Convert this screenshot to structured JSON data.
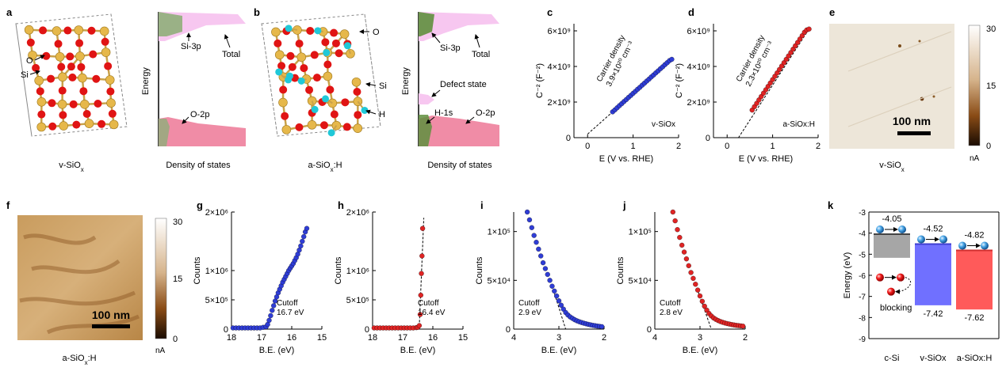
{
  "figure": {
    "panel_a": {
      "letter": "a",
      "caption": "v-SiOx",
      "atom_labels": [
        "O",
        "Si"
      ]
    },
    "panel_a_dos": {
      "ylabel": "Energy",
      "xlabel": "Density of states",
      "labels": [
        "Si-3p",
        "Total",
        "O-2p"
      ]
    },
    "panel_b": {
      "letter": "b",
      "caption": "a-SiOx:H",
      "atom_labels": [
        "O",
        "Si",
        "H"
      ]
    },
    "panel_b_dos": {
      "ylabel": "Energy",
      "xlabel": "Density of states",
      "labels": [
        "Si-3p",
        "Total",
        "Defect state",
        "H-1s",
        "O-2p"
      ]
    },
    "panel_e": {
      "letter": "e",
      "caption": "v-SiOx",
      "scale_bar": "100 nm",
      "colorbar_ticks": [
        "30",
        "15",
        "0"
      ],
      "colorbar_unit": "nA"
    },
    "panel_f": {
      "letter": "f",
      "caption": "a-SiOx:H",
      "scale_bar": "100 nm",
      "colorbar_ticks": [
        "30",
        "15",
        "0"
      ],
      "colorbar_unit": "nA"
    },
    "panel_k": {
      "letter": "k",
      "ylabel": "Energy (eV)",
      "blocking_label": "blocking"
    }
  },
  "chart_data": [
    {
      "panel": "c",
      "type": "scatter",
      "ylabel": "C⁻² (F⁻²)",
      "xlabel": "E (V vs. RHE)",
      "xlim": [
        -0.3,
        2.0
      ],
      "ylim": [
        0,
        6400000000.0
      ],
      "xticks": [
        "0",
        "1",
        "2"
      ],
      "yticks": [
        "0",
        "2×10⁹",
        "4×10⁹",
        "6×10⁹"
      ],
      "annotation_line1": "Carrier density",
      "annotation_line2": "3.9×10²⁰ cm⁻³",
      "legend": "v-SiOx",
      "color": "#2f3dd6",
      "x": [
        0.55,
        0.6,
        0.65,
        0.7,
        0.75,
        0.8,
        0.85,
        0.9,
        0.95,
        1.0,
        1.05,
        1.1,
        1.15,
        1.2,
        1.25,
        1.3,
        1.35,
        1.4,
        1.45,
        1.5,
        1.55,
        1.6,
        1.65,
        1.7,
        1.75,
        1.8,
        1.85
      ],
      "y": [
        1450000000.0,
        1560000000.0,
        1680000000.0,
        1800000000.0,
        1910000000.0,
        2030000000.0,
        2140000000.0,
        2260000000.0,
        2370000000.0,
        2490000000.0,
        2600000000.0,
        2720000000.0,
        2830000000.0,
        2950000000.0,
        3060000000.0,
        3180000000.0,
        3290000000.0,
        3410000000.0,
        3520000000.0,
        3640000000.0,
        3750000000.0,
        3870000000.0,
        3980000000.0,
        4100000000.0,
        4210000000.0,
        4330000000.0,
        4400000000.0
      ],
      "fit": [
        [
          0,
          200000000.0
        ],
        [
          1.85,
          4400000000.0
        ]
      ]
    },
    {
      "panel": "d",
      "type": "scatter",
      "ylabel": "C⁻² (F⁻²)",
      "xlabel": "E (V vs. RHE)",
      "xlim": [
        -0.3,
        2.0
      ],
      "ylim": [
        0,
        6400000000.0
      ],
      "xticks": [
        "0",
        "1",
        "2"
      ],
      "yticks": [
        "0",
        "2×10⁹",
        "4×10⁹",
        "6×10⁹"
      ],
      "annotation_line1": "Carrier density",
      "annotation_line2": "2.3×10²⁰ cm⁻³",
      "legend": "a-SiOx:H",
      "color": "#e02424",
      "x": [
        0.55,
        0.6,
        0.65,
        0.7,
        0.75,
        0.8,
        0.85,
        0.9,
        0.95,
        1.0,
        1.05,
        1.1,
        1.15,
        1.2,
        1.25,
        1.3,
        1.35,
        1.4,
        1.45,
        1.5,
        1.55,
        1.6,
        1.65,
        1.7,
        1.75,
        1.8
      ],
      "y": [
        1550000000.0,
        1740000000.0,
        1930000000.0,
        2120000000.0,
        2310000000.0,
        2500000000.0,
        2690000000.0,
        2880000000.0,
        3070000000.0,
        3260000000.0,
        3450000000.0,
        3640000000.0,
        3830000000.0,
        4020000000.0,
        4210000000.0,
        4400000000.0,
        4590000000.0,
        4780000000.0,
        4970000000.0,
        5160000000.0,
        5350000000.0,
        5540000000.0,
        5730000000.0,
        5920000000.0,
        6050000000.0,
        6100000000.0
      ],
      "fit": [
        [
          0.25,
          0
        ],
        [
          1.8,
          6100000000.0
        ]
      ]
    },
    {
      "panel": "g",
      "type": "scatter",
      "ylabel": "Counts",
      "xlabel": "B.E. (eV)",
      "xlim": [
        18,
        15
      ],
      "ylim": [
        0,
        2000000.0
      ],
      "xticks": [
        "18",
        "17",
        "16",
        "15"
      ],
      "yticks": [
        "0",
        "5×10⁵",
        "1×10⁶",
        "2×10⁶"
      ],
      "annotation_line1": "Cutoff",
      "annotation_line2": "16.7 eV",
      "color": "#2f3dd6",
      "x": [
        17.95,
        17.85,
        17.75,
        17.65,
        17.55,
        17.45,
        17.35,
        17.25,
        17.15,
        17.05,
        16.95,
        16.85,
        16.8,
        16.75,
        16.7,
        16.65,
        16.6,
        16.55,
        16.5,
        16.45,
        16.4,
        16.35,
        16.3,
        16.25,
        16.2,
        16.15,
        16.1,
        16.05,
        16.0,
        15.95,
        15.9,
        15.85,
        15.8,
        15.75,
        15.7,
        15.65,
        15.6,
        15.55,
        15.5
      ],
      "y": [
        20000.0,
        20000.0,
        20000.0,
        20000.0,
        20000.0,
        20000.0,
        20000.0,
        20000.0,
        20000.0,
        20000.0,
        30000.0,
        40000.0,
        80000.0,
        150000.0,
        230000.0,
        320000.0,
        400000.0,
        480000.0,
        550000.0,
        620000.0,
        680000.0,
        740000.0,
        800000.0,
        850000.0,
        900000.0,
        950000.0,
        1000000.0,
        1040000.0,
        1080000.0,
        1120000.0,
        1170000.0,
        1220000.0,
        1280000.0,
        1350000.0,
        1420000.0,
        1500000.0,
        1580000.0,
        1660000.0,
        1720000.0
      ]
    },
    {
      "panel": "h",
      "type": "scatter",
      "ylabel": "Counts",
      "xlabel": "B.E. (eV)",
      "xlim": [
        18,
        15
      ],
      "ylim": [
        0,
        2000000.0
      ],
      "xticks": [
        "18",
        "17",
        "16",
        "15"
      ],
      "yticks": [
        "0",
        "5×10⁵",
        "1×10⁶",
        "2×10⁶"
      ],
      "annotation_line1": "Cutoff",
      "annotation_line2": "16.4 eV",
      "color": "#e02424",
      "x": [
        17.95,
        17.85,
        17.75,
        17.65,
        17.55,
        17.45,
        17.35,
        17.25,
        17.15,
        17.05,
        16.95,
        16.85,
        16.75,
        16.65,
        16.55,
        16.5,
        16.45,
        16.42,
        16.4,
        16.38,
        16.36,
        16.34
      ],
      "y": [
        20000.0,
        20000.0,
        20000.0,
        20000.0,
        20000.0,
        20000.0,
        20000.0,
        20000.0,
        20000.0,
        20000.0,
        20000.0,
        20000.0,
        20000.0,
        20000.0,
        25000.0,
        30000.0,
        60000.0,
        250000.0,
        580000.0,
        950000.0,
        1250000.0,
        1720000.0
      ],
      "fit": [
        [
          16.45,
          50000.0
        ],
        [
          16.3,
          1900000.0
        ]
      ]
    },
    {
      "panel": "i",
      "type": "scatter",
      "ylabel": "Counts",
      "xlabel": "B.E. (eV)",
      "xlim": [
        4,
        2
      ],
      "ylim": [
        0,
        120000.0
      ],
      "xticks": [
        "4",
        "3",
        "2"
      ],
      "yticks": [
        "0",
        "5×10⁴",
        "1×10⁵"
      ],
      "annotation_line1": "Cutoff",
      "annotation_line2": "2.9 eV",
      "color": "#2f3dd6",
      "x": [
        3.7,
        3.65,
        3.6,
        3.55,
        3.5,
        3.45,
        3.4,
        3.35,
        3.3,
        3.25,
        3.2,
        3.15,
        3.1,
        3.05,
        3.0,
        2.95,
        2.9,
        2.85,
        2.8,
        2.75,
        2.7,
        2.65,
        2.6,
        2.55,
        2.5,
        2.45,
        2.4,
        2.35,
        2.3,
        2.25,
        2.2,
        2.15,
        2.1,
        2.05
      ],
      "y": [
        120000.0,
        112000.0,
        104000.0,
        96000.0,
        89000.0,
        82000.0,
        75000.0,
        68000.0,
        62000.0,
        56000.0,
        50000.0,
        44000.0,
        39000.0,
        34000.0,
        29000.0,
        24500.0,
        20500.0,
        17000.0,
        14500.0,
        12500.0,
        11000.0,
        9600.0,
        8500.0,
        7600.0,
        6800.0,
        6100.0,
        5500.0,
        4900.0,
        4400.0,
        3900.0,
        3500.0,
        3100.0,
        2800.0,
        2500.0
      ],
      "fit": [
        [
          3.15,
          44000.0
        ],
        [
          2.85,
          0
        ]
      ]
    },
    {
      "panel": "j",
      "type": "scatter",
      "ylabel": "Counts",
      "xlabel": "B.E. (eV)",
      "xlim": [
        4,
        2
      ],
      "ylim": [
        0,
        120000.0
      ],
      "xticks": [
        "4",
        "3",
        "2"
      ],
      "yticks": [
        "0",
        "5×10⁴",
        "1×10⁵"
      ],
      "annotation_line1": "Cutoff",
      "annotation_line2": "2.8 eV",
      "color": "#e02424",
      "x": [
        3.6,
        3.55,
        3.5,
        3.45,
        3.4,
        3.35,
        3.3,
        3.25,
        3.2,
        3.15,
        3.1,
        3.05,
        3.0,
        2.95,
        2.9,
        2.85,
        2.8,
        2.75,
        2.7,
        2.65,
        2.6,
        2.55,
        2.5,
        2.45,
        2.4,
        2.35,
        2.3,
        2.25,
        2.2,
        2.15,
        2.1,
        2.05
      ],
      "y": [
        120000.0,
        111000.0,
        102000.0,
        94000.0,
        86000.0,
        79000.0,
        72000.0,
        65000.0,
        58000.0,
        52000.0,
        46000.0,
        40000.0,
        34000.0,
        28500.0,
        23500.0,
        19500.0,
        16000.0,
        13500.0,
        11500.0,
        10000.0,
        8800.0,
        7800.0,
        7000.0,
        6300.0,
        5700.0,
        5200.0,
        4700.0,
        4300.0,
        3900.0,
        3600.0,
        3300.0,
        3000.0
      ],
      "fit": [
        [
          3.1,
          46000.0
        ],
        [
          2.75,
          0
        ]
      ]
    },
    {
      "panel": "k",
      "type": "bar",
      "ylabel": "Energy (eV)",
      "ylim": [
        -9,
        -3
      ],
      "yticks": [
        "-3",
        "-4",
        "-5",
        "-6",
        "-7",
        "-8",
        "-9"
      ],
      "categories": [
        "c-Si",
        "v-SiOx",
        "a-SiOx:H"
      ],
      "cb_values": [
        -4.05,
        -4.52,
        -4.82
      ],
      "vb_values": [
        -5.17,
        -7.42,
        -7.62
      ],
      "top_labels": [
        "-4.05",
        "-4.52",
        "-4.82"
      ],
      "bottom_labels": [
        "",
        "-7.42",
        "-7.62"
      ],
      "colors": [
        "#a6a6a6",
        "#7070ff",
        "#ff5a5a"
      ]
    }
  ]
}
